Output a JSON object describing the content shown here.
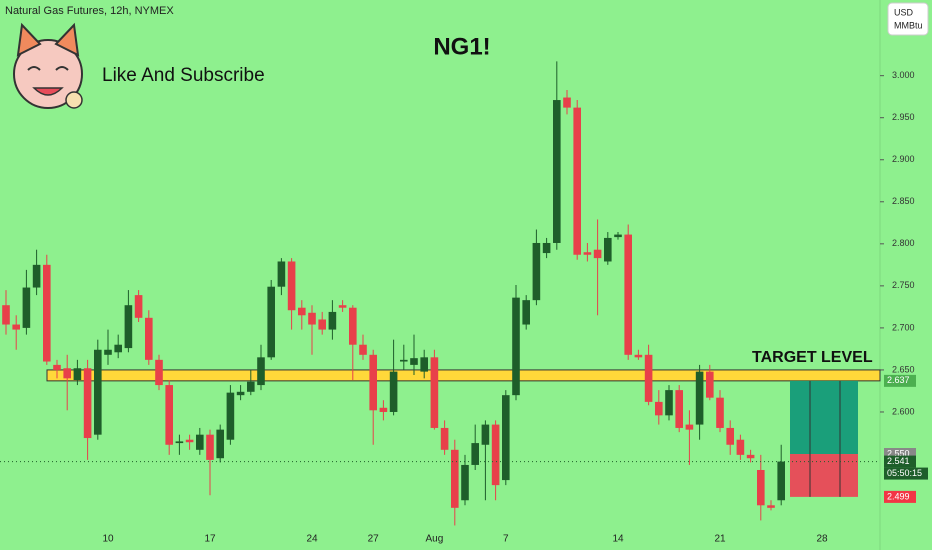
{
  "header": {
    "symbol": "Natural Gas Futures, 12h, NYMEX",
    "currency": "USD",
    "unit": "MMBtu"
  },
  "chart_data": {
    "type": "candlestick",
    "title": "NG1!",
    "subtitle": "Like And Subscribe",
    "annotation": "TARGET LEVEL",
    "countdown": "05:50:15",
    "up_color": "#1e5e2a",
    "down_color": "#e8404a",
    "categories": [
      null,
      null,
      null,
      null,
      null,
      null,
      null,
      null,
      null,
      null,
      "10",
      null,
      null,
      null,
      null,
      null,
      null,
      null,
      null,
      null,
      "17",
      null,
      null,
      null,
      null,
      null,
      null,
      null,
      null,
      null,
      "24",
      null,
      null,
      null,
      null,
      null,
      "27",
      null,
      null,
      null,
      null,
      null,
      "Aug",
      null,
      null,
      null,
      null,
      null,
      null,
      "7",
      null,
      null,
      null,
      null,
      null,
      null,
      null,
      null,
      null,
      null,
      "14",
      null,
      null,
      null,
      null,
      null,
      null,
      null,
      null,
      null,
      "21",
      null,
      null,
      null,
      null,
      null,
      null,
      null,
      null,
      null,
      "28",
      null,
      null
    ],
    "series": [
      {
        "name": "NG1!",
        "open": [
          2.727,
          2.704,
          2.7,
          2.748,
          2.775,
          2.656,
          2.652,
          2.638,
          2.652,
          2.573,
          2.668,
          2.671,
          2.676,
          2.739,
          2.712,
          2.662,
          2.632,
          2.563,
          2.567,
          2.555,
          2.573,
          2.545,
          2.567,
          2.62,
          2.624,
          2.632,
          2.665,
          2.749,
          2.779,
          2.724,
          2.718,
          2.71,
          2.698,
          2.727,
          2.724,
          2.68,
          2.668,
          2.605,
          2.6,
          2.66,
          2.656,
          2.648,
          2.665,
          2.581,
          2.555,
          2.495,
          2.537,
          2.561,
          2.585,
          2.519,
          2.62,
          2.704,
          2.733,
          2.789,
          2.801,
          2.974,
          2.962,
          2.79,
          2.793,
          2.779,
          2.808,
          2.811,
          2.668,
          2.668,
          2.612,
          2.596,
          2.626,
          2.585,
          2.585,
          2.648,
          2.617,
          2.581,
          2.567,
          2.549,
          2.531,
          2.489,
          2.495,
          null,
          null,
          null,
          null,
          null,
          null
        ],
        "high": [
          2.745,
          2.715,
          2.769,
          2.793,
          2.787,
          2.662,
          2.668,
          2.662,
          2.662,
          2.686,
          2.698,
          2.692,
          2.745,
          2.745,
          2.721,
          2.668,
          2.638,
          2.573,
          2.573,
          2.581,
          2.579,
          2.585,
          2.632,
          2.632,
          2.65,
          2.68,
          2.757,
          2.783,
          2.783,
          2.733,
          2.727,
          2.719,
          2.733,
          2.733,
          2.727,
          2.692,
          2.674,
          2.614,
          2.686,
          2.68,
          2.692,
          2.674,
          2.674,
          2.59,
          2.567,
          2.549,
          2.585,
          2.59,
          2.59,
          2.626,
          2.751,
          2.739,
          2.817,
          2.807,
          3.017,
          2.983,
          2.971,
          2.801,
          2.829,
          2.814,
          2.814,
          2.823,
          2.674,
          2.68,
          2.626,
          2.632,
          2.632,
          2.602,
          2.656,
          2.656,
          2.626,
          2.59,
          2.573,
          2.555,
          2.549,
          2.495,
          2.561,
          null,
          null,
          null,
          null,
          null,
          null
        ],
        "low": [
          2.692,
          2.674,
          2.692,
          2.739,
          2.656,
          2.64,
          2.602,
          2.632,
          2.543,
          2.567,
          2.656,
          2.664,
          2.671,
          2.707,
          2.656,
          2.626,
          2.549,
          2.549,
          2.555,
          2.549,
          2.501,
          2.54,
          2.561,
          2.614,
          2.62,
          2.626,
          2.662,
          2.739,
          2.698,
          2.698,
          2.668,
          2.692,
          2.686,
          2.719,
          2.638,
          2.662,
          2.561,
          2.59,
          2.596,
          2.65,
          2.644,
          2.64,
          2.579,
          2.549,
          2.465,
          2.489,
          2.531,
          2.495,
          2.495,
          2.513,
          2.614,
          2.698,
          2.727,
          2.783,
          2.793,
          2.954,
          2.781,
          2.779,
          2.715,
          2.775,
          2.805,
          2.662,
          2.662,
          2.608,
          2.585,
          2.59,
          2.576,
          2.537,
          2.567,
          2.614,
          2.576,
          2.549,
          2.543,
          2.54,
          2.471,
          2.483,
          2.489,
          null,
          null,
          null,
          null,
          null,
          null
        ],
        "close": [
          2.704,
          2.698,
          2.748,
          2.775,
          2.66,
          2.65,
          2.64,
          2.652,
          2.569,
          2.674,
          2.674,
          2.68,
          2.727,
          2.712,
          2.662,
          2.632,
          2.561,
          2.565,
          2.564,
          2.573,
          2.543,
          2.579,
          2.623,
          2.624,
          2.636,
          2.665,
          2.749,
          2.779,
          2.721,
          2.715,
          2.704,
          2.698,
          2.719,
          2.724,
          2.68,
          2.668,
          2.602,
          2.6,
          2.648,
          2.662,
          2.664,
          2.665,
          2.581,
          2.555,
          2.486,
          2.537,
          2.563,
          2.585,
          2.513,
          2.62,
          2.736,
          2.733,
          2.801,
          2.801,
          2.971,
          2.962,
          2.787,
          2.787,
          2.783,
          2.807,
          2.811,
          2.668,
          2.665,
          2.612,
          2.596,
          2.626,
          2.581,
          2.579,
          2.648,
          2.617,
          2.581,
          2.561,
          2.549,
          2.545,
          2.489,
          2.486,
          2.541,
          null,
          null,
          null,
          null,
          null,
          null
        ]
      }
    ],
    "ylim": [
      2.462,
      3.09
    ],
    "yticks": [
      {
        "value": 2.6,
        "label": "2.600"
      },
      {
        "value": 2.65,
        "label": "2.650"
      },
      {
        "value": 2.7,
        "label": "2.700"
      },
      {
        "value": 2.75,
        "label": "2.750"
      },
      {
        "value": 2.8,
        "label": "2.800"
      },
      {
        "value": 2.85,
        "label": "2.850"
      },
      {
        "value": 2.9,
        "label": "2.900"
      },
      {
        "value": 2.95,
        "label": "2.950"
      },
      {
        "value": 3.0,
        "label": "3.000"
      }
    ],
    "target_band": [
      2.637,
      2.65
    ],
    "price_labels": [
      {
        "value": 2.637,
        "label": "2.637",
        "color": "#4caf50"
      },
      {
        "value": 2.55,
        "label": "2.550",
        "color": "#888888"
      },
      {
        "value": 2.541,
        "label": "2.541",
        "color": "#1e5e2a"
      },
      {
        "value": 2.499,
        "label": "2.499",
        "color": "#f23645"
      }
    ],
    "position": {
      "target": 2.637,
      "entry": 2.55,
      "stop": 2.499,
      "profit_color": "#1a9f7a",
      "loss_color": "#e5505a"
    }
  }
}
